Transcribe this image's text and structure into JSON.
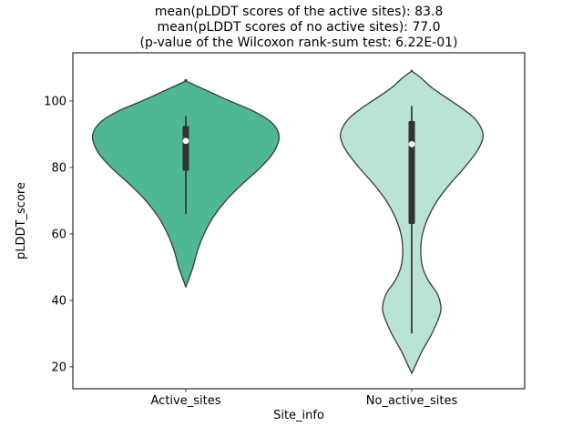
{
  "chart_data": {
    "type": "violin",
    "title_lines": [
      "mean(pLDDT scores of the active sites): 83.8",
      "mean(pLDDT scores of no active sites): 77.0",
      "(p-value of the Wilcoxon rank-sum test: 6.22E-01)"
    ],
    "xlabel": "Site_info",
    "ylabel": "pLDDT_score",
    "categories": [
      "Active_sites",
      "No_active_sites"
    ],
    "yticks": [
      20,
      40,
      60,
      80,
      100
    ],
    "ylim": [
      13.4,
      114.5
    ],
    "edge_color": "#3a3a3a",
    "box_color": "#333333",
    "median_dot_color": "#ffffff",
    "p_value": "6.22E-01",
    "means": {
      "active_sites": 83.8,
      "no_active_sites": 77.0
    },
    "series": [
      {
        "name": "Active_sites",
        "fill": "#4db893",
        "stats": {
          "whisker_low": 66,
          "q1": 79,
          "median": 88,
          "q3": 92.5,
          "whisker_high": 95.5,
          "mean": 83.8
        },
        "density": [
          [
            44,
            0
          ],
          [
            47,
            0.016
          ],
          [
            50,
            0.032
          ],
          [
            55,
            0.052
          ],
          [
            60,
            0.081
          ],
          [
            65,
            0.121
          ],
          [
            70,
            0.177
          ],
          [
            75,
            0.25
          ],
          [
            80,
            0.331
          ],
          [
            84,
            0.383
          ],
          [
            88,
            0.411
          ],
          [
            91,
            0.407
          ],
          [
            94,
            0.371
          ],
          [
            97,
            0.298
          ],
          [
            100,
            0.194
          ],
          [
            103,
            0.097
          ],
          [
            106,
            0
          ]
        ]
      },
      {
        "name": "No_active_sites",
        "fill": "#b9e3d2",
        "stats": {
          "whisker_low": 30,
          "q1": 63,
          "median": 87,
          "q3": 94,
          "whisker_high": 98.5,
          "mean": 77.0
        },
        "density": [
          [
            18,
            0
          ],
          [
            21,
            0.02
          ],
          [
            25,
            0.048
          ],
          [
            30,
            0.089
          ],
          [
            35,
            0.121
          ],
          [
            38,
            0.129
          ],
          [
            42,
            0.113
          ],
          [
            46,
            0.073
          ],
          [
            50,
            0.048
          ],
          [
            55,
            0.04
          ],
          [
            60,
            0.048
          ],
          [
            65,
            0.073
          ],
          [
            70,
            0.113
          ],
          [
            75,
            0.169
          ],
          [
            80,
            0.234
          ],
          [
            85,
            0.29
          ],
          [
            89,
            0.315
          ],
          [
            92,
            0.306
          ],
          [
            95,
            0.274
          ],
          [
            98,
            0.218
          ],
          [
            101,
            0.153
          ],
          [
            104,
            0.089
          ],
          [
            107,
            0.04
          ],
          [
            109,
            0
          ]
        ]
      }
    ]
  }
}
